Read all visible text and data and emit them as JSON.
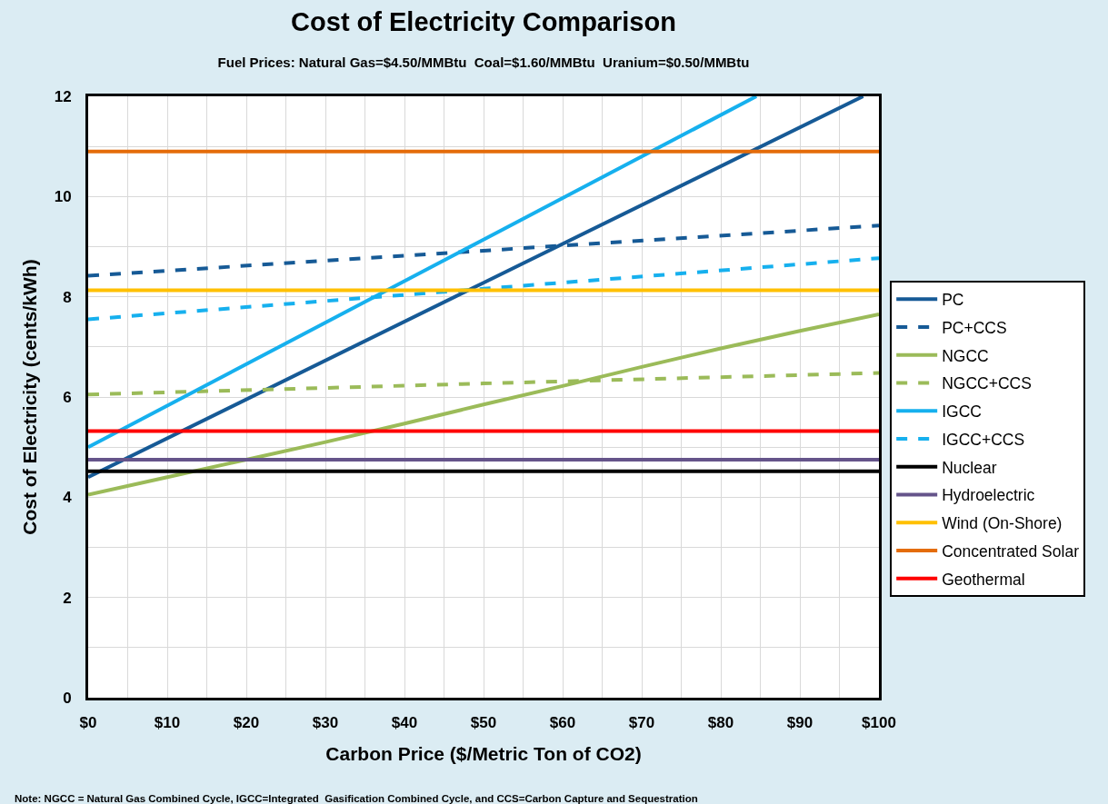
{
  "chart_data": {
    "type": "line",
    "title": "Cost of Electricity Comparison",
    "subtitle": "Fuel Prices: Natural Gas=$4.50/MMBtu  Coal=$1.60/MMBtu  Uranium=$0.50/MMBtu",
    "xlabel": "Carbon Price ($/Metric Ton of CO2)",
    "ylabel": "Cost of Electricity (cents/kWh)",
    "annotations": [
      "Note: NGCC = Natural Gas Combined Cycle, IGCC=Integrated  Gasification Combined Cycle, and CCS=Carbon Capture and Sequestration"
    ],
    "xlim": [
      0,
      100
    ],
    "ylim": [
      0,
      12
    ],
    "xticks": [
      {
        "value": 0,
        "label": "$0"
      },
      {
        "value": 5,
        "label": null
      },
      {
        "value": 10,
        "label": "$10"
      },
      {
        "value": 15,
        "label": null
      },
      {
        "value": 20,
        "label": "$20"
      },
      {
        "value": 25,
        "label": null
      },
      {
        "value": 30,
        "label": "$30"
      },
      {
        "value": 35,
        "label": null
      },
      {
        "value": 40,
        "label": "$40"
      },
      {
        "value": 45,
        "label": null
      },
      {
        "value": 50,
        "label": "$50"
      },
      {
        "value": 55,
        "label": null
      },
      {
        "value": 60,
        "label": "$60"
      },
      {
        "value": 65,
        "label": null
      },
      {
        "value": 70,
        "label": "$70"
      },
      {
        "value": 75,
        "label": null
      },
      {
        "value": 80,
        "label": "$80"
      },
      {
        "value": 85,
        "label": null
      },
      {
        "value": 90,
        "label": "$90"
      },
      {
        "value": 95,
        "label": null
      },
      {
        "value": 100,
        "label": "$100"
      }
    ],
    "yticks": [
      0,
      {
        "value": 1,
        "label": null
      },
      2,
      {
        "value": 3,
        "label": null
      },
      4,
      {
        "value": 5,
        "label": null
      },
      6,
      {
        "value": 7,
        "label": null
      },
      8,
      {
        "value": 9,
        "label": null
      },
      10,
      {
        "value": 11,
        "label": null
      },
      12
    ],
    "grid": true,
    "legend": "right",
    "marker": "none",
    "series": [
      {
        "name": "PC",
        "color": "#165a96",
        "line_style": "solid",
        "x": [
          0,
          50,
          98
        ],
        "values": [
          4.4,
          8.28,
          12
        ]
      },
      {
        "name": "PC+CCS",
        "color": "#165a96",
        "line_style": "dashed",
        "x": [
          0,
          50,
          100
        ],
        "values": [
          8.42,
          8.92,
          9.42
        ]
      },
      {
        "name": "NGCC",
        "color": "#9bbb59",
        "line_style": "solid",
        "x": [
          0,
          10,
          20,
          30,
          40,
          50,
          60,
          70,
          80,
          90,
          100
        ],
        "values": [
          4.05,
          4.4,
          4.75,
          5.1,
          5.47,
          5.85,
          6.22,
          6.6,
          6.97,
          7.32,
          7.65
        ]
      },
      {
        "name": "NGCC+CCS",
        "color": "#9bbb59",
        "line_style": "dashed",
        "x": [
          0,
          50,
          100
        ],
        "values": [
          6.05,
          6.27,
          6.48
        ]
      },
      {
        "name": "IGCC",
        "color": "#16b0ee",
        "line_style": "solid",
        "x": [
          0,
          50,
          84.5
        ],
        "values": [
          5.0,
          9.14,
          12
        ]
      },
      {
        "name": "IGCC+CCS",
        "color": "#16b0ee",
        "line_style": "dashed",
        "x": [
          0,
          50,
          100
        ],
        "values": [
          7.55,
          8.16,
          8.77
        ]
      },
      {
        "name": "Nuclear",
        "color": "#000000",
        "line_style": "solid",
        "x": [
          0,
          100
        ],
        "values": [
          4.52,
          4.52
        ]
      },
      {
        "name": "Hydroelectric",
        "color": "#65548a",
        "line_style": "solid",
        "x": [
          0,
          100
        ],
        "values": [
          4.75,
          4.75
        ]
      },
      {
        "name": "Wind (On-Shore)",
        "color": "#ffc000",
        "line_style": "solid",
        "x": [
          0,
          100
        ],
        "values": [
          8.13,
          8.13
        ]
      },
      {
        "name": "Concentrated Solar",
        "color": "#e46c0a",
        "line_style": "solid",
        "x": [
          0,
          100
        ],
        "values": [
          10.9,
          10.9
        ]
      },
      {
        "name": "Geothermal",
        "color": "#ff0000",
        "line_style": "solid",
        "x": [
          0,
          100
        ],
        "values": [
          5.32,
          5.32
        ]
      }
    ]
  }
}
